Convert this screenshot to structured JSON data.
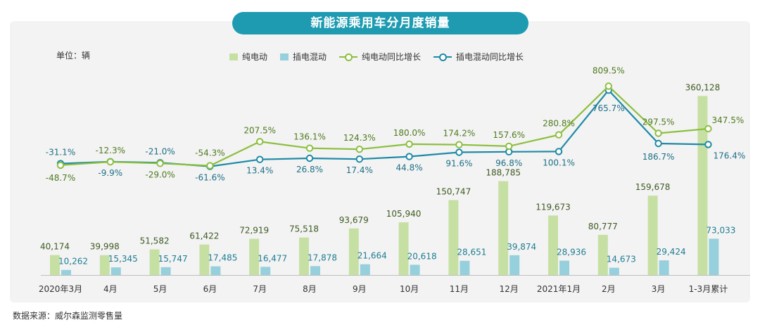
{
  "page": {
    "title": "新能源乘用车分月度销量",
    "unit": "单位：辆",
    "source": "数据来源：威尔森监测零售量"
  },
  "colors": {
    "bev_bar": "#c6e0a4",
    "phev_bar": "#96d0dc",
    "bev_line": "#8cbf3f",
    "phev_line": "#1e8aa6",
    "title_bg": "#1e9bb1"
  },
  "chart_data": {
    "type": "bar+line",
    "categories": [
      "2020年3月",
      "4月",
      "5月",
      "6月",
      "7月",
      "8月",
      "9月",
      "10月",
      "11月",
      "12月",
      "2021年1月",
      "2月",
      "3月",
      "1-3月累计"
    ],
    "series": [
      {
        "name": "纯电动",
        "kind": "bar",
        "values": [
          40174,
          39998,
          51582,
          61422,
          72919,
          75518,
          93679,
          105940,
          150747,
          188785,
          119673,
          80777,
          159678,
          360128
        ],
        "labels": [
          "40,174",
          "39,998",
          "51,582",
          "61,422",
          "72,919",
          "75,518",
          "93,679",
          "105,940",
          "150,747",
          "188,785",
          "119,673",
          "80,777",
          "159,678",
          "360,128"
        ]
      },
      {
        "name": "插电混动",
        "kind": "bar",
        "values": [
          10262,
          15345,
          15747,
          17485,
          16477,
          17878,
          21664,
          20618,
          28651,
          39874,
          28936,
          14673,
          29424,
          73033
        ],
        "labels": [
          "10,262",
          "15,345",
          "15,747",
          "17,485",
          "16,477",
          "17,878",
          "21,664",
          "20,618",
          "28,651",
          "39,874",
          "28,936",
          "14,673",
          "29,424",
          "73,033"
        ]
      },
      {
        "name": "纯电动同比增长",
        "kind": "line",
        "values": [
          -48.7,
          -12.3,
          -29.0,
          -54.3,
          207.5,
          136.1,
          124.3,
          180.0,
          174.2,
          157.6,
          280.8,
          809.5,
          297.5,
          347.5
        ],
        "labels": [
          "-48.7%",
          "-12.3%",
          "-29.0%",
          "-54.3%",
          "207.5%",
          "136.1%",
          "124.3%",
          "180.0%",
          "174.2%",
          "157.6%",
          "280.8%",
          "809.5%",
          "297.5%",
          "347.5%"
        ]
      },
      {
        "name": "插电混动同比增长",
        "kind": "line",
        "values": [
          -31.1,
          -9.9,
          -21.0,
          -61.6,
          13.4,
          26.8,
          17.4,
          44.8,
          91.6,
          96.8,
          100.1,
          765.7,
          186.7,
          176.4
        ],
        "labels": [
          "-31.1%",
          "-9.9%",
          "-21.0%",
          "-61.6%",
          "13.4%",
          "26.8%",
          "17.4%",
          "44.8%",
          "91.6%",
          "96.8%",
          "100.1%",
          "765.7%",
          "186.7%",
          "176.4%"
        ]
      }
    ],
    "legend": [
      "纯电动",
      "插电混动",
      "纯电动同比增长",
      "插电混动同比增长"
    ],
    "legend_position": "top-center",
    "grid": false,
    "axes_visible": false
  }
}
